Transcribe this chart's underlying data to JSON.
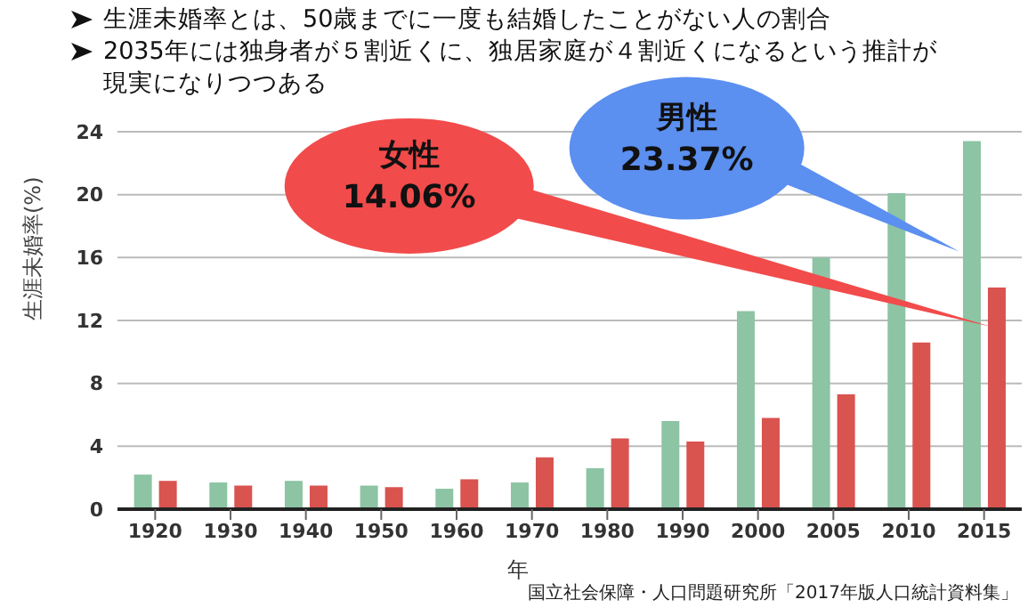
{
  "chart_data": {
    "type": "bar",
    "title": "生涯未婚率とは、50歳までに一度も結婚したことがない人の割合",
    "subtitle": "2035年には独身者が５割近くに、独居家庭が４割近くになるという推計が現実になりつつある",
    "xlabel": "年",
    "ylabel": "生涯未婚率(%)",
    "categories": [
      "1920",
      "1930",
      "1940",
      "1950",
      "1960",
      "1970",
      "1980",
      "1990",
      "2000",
      "2005",
      "2010",
      "2015"
    ],
    "series": [
      {
        "color": "#8cc4a4",
        "values": [
          2.2,
          1.7,
          1.8,
          1.5,
          1.3,
          1.7,
          2.6,
          5.6,
          12.6,
          16.0,
          20.1,
          23.4
        ]
      },
      {
        "color": "#d9534f",
        "values": [
          1.8,
          1.5,
          1.5,
          1.4,
          1.9,
          3.3,
          4.5,
          4.3,
          5.8,
          7.3,
          10.6,
          14.1
        ]
      }
    ],
    "ylim": [
      0,
      24
    ],
    "yticks": [
      0,
      4,
      8,
      12,
      16,
      20,
      24
    ],
    "grid": "y",
    "legend": false,
    "annotations": [
      "男性\n23.37%",
      "女性\n14.06%",
      "国立社会保障・人口問題研究所「2017年版人口統計資料集」"
    ]
  }
}
